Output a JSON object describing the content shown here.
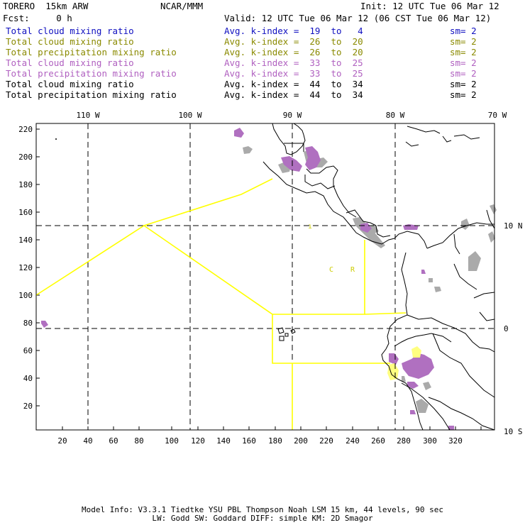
{
  "header": {
    "model": "TORERO  15km ARW",
    "org": "NCAR/MMM",
    "init": "Init: 12 UTC Tue 06 Mar 12",
    "fcst": "Fcst:     0 h",
    "valid": "Valid: 12 UTC Tue 06 Mar 12 (06 CST Tue 06 Mar 12)"
  },
  "legend": [
    {
      "field": "Total cloud mixing ratio",
      "stat": "Avg. k-index =  19  to   4",
      "sm": "sm= 2",
      "color": "#1010c0"
    },
    {
      "field": "Total cloud mixing ratio",
      "stat": "Avg. k-index =  26  to  20",
      "sm": "sm= 2",
      "color": "#8a8a00"
    },
    {
      "field": "Total precipitation mixing ratio",
      "stat": "Avg. k-index =  26  to  20",
      "sm": "sm= 2",
      "color": "#8a8a00"
    },
    {
      "field": "Total cloud mixing ratio",
      "stat": "Avg. k-index =  33  to  25",
      "sm": "sm= 2",
      "color": "#b060c0"
    },
    {
      "field": "Total precipitation mixing ratio",
      "stat": "Avg. k-index =  33  to  25",
      "sm": "sm= 2",
      "color": "#b060c0"
    },
    {
      "field": "Total cloud mixing ratio",
      "stat": "Avg. k-index =  44  to  34",
      "sm": "sm= 2",
      "color": "#000000"
    },
    {
      "field": "Total precipitation mixing ratio",
      "stat": "Avg. k-index =  44  to  34",
      "sm": "sm= 2",
      "color": "#000000"
    }
  ],
  "map": {
    "lon_labels": [
      "110 W",
      "100 W",
      "90 W",
      "80 W",
      "70 W"
    ],
    "lat_labels": [
      "10 N",
      "0",
      "10 S"
    ],
    "grid_x_ticks": [
      "20",
      "40",
      "60",
      "80",
      "100",
      "120",
      "140",
      "160",
      "180",
      "200",
      "220",
      "240",
      "260",
      "280",
      "300",
      "320"
    ],
    "grid_y_ticks": [
      "20",
      "40",
      "60",
      "80",
      "100",
      "120",
      "140",
      "160",
      "180",
      "200",
      "220"
    ],
    "region_labels": [
      "C",
      "R"
    ],
    "colors": {
      "boundary": "#ffff00",
      "shade_gray": "#aaaaaa",
      "shade_purple": "#b070c0",
      "shade_yellow": "#ffff80",
      "coast": "#000000"
    }
  },
  "footer": {
    "line1": "Model Info: V3.3.1   Tiedtke YSU PBL  Thompson    Noah LSM  15 km,   44 levels,   90 sec",
    "line2": "LW: Godd SW: Goddard DIFF: simple KM: 2D Smagor"
  }
}
